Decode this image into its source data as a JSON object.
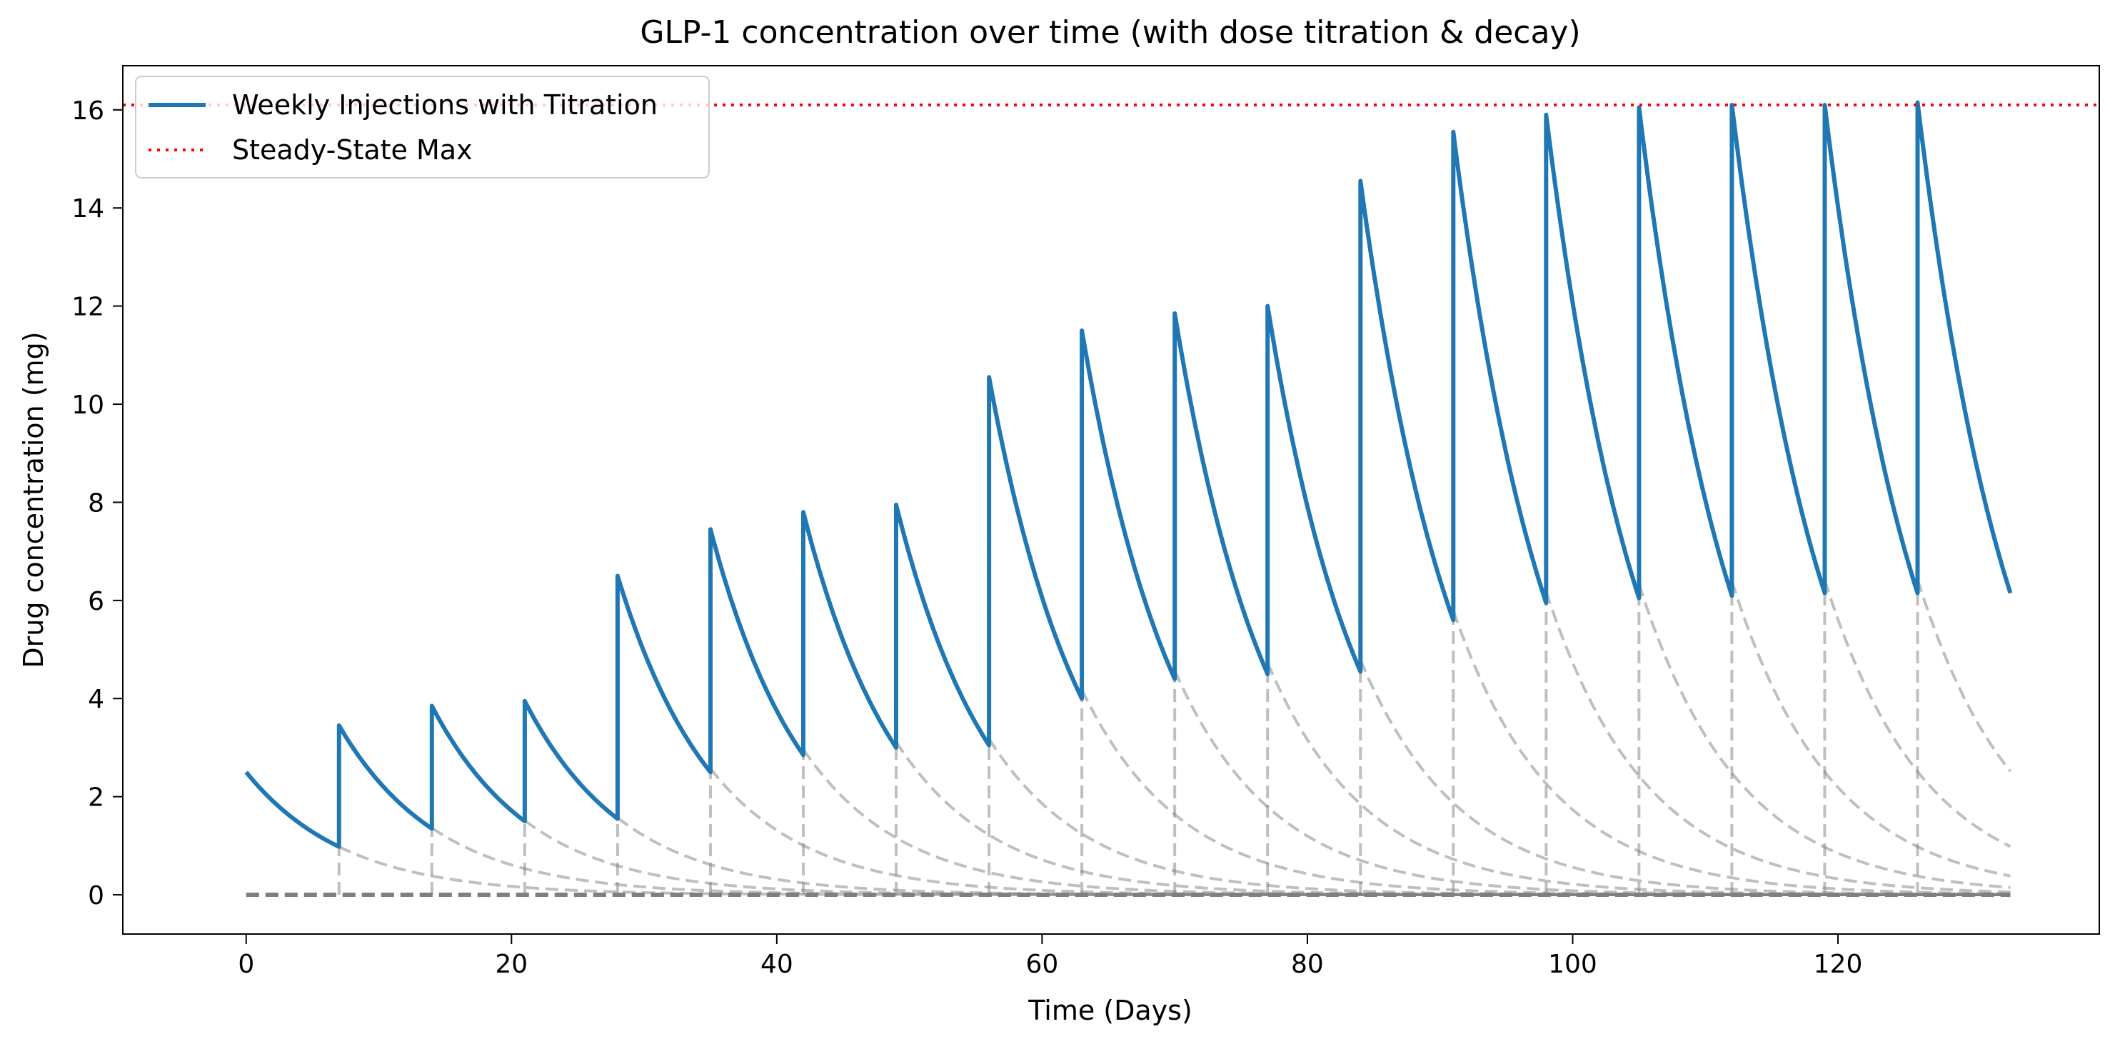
{
  "colors": {
    "series": "#1f77b4",
    "steady_state": "#ff0000",
    "component_curves": "#7f7f7f",
    "axes": "#000000",
    "background": "#ffffff"
  },
  "chart_data": {
    "type": "line",
    "title": "GLP-1 concentration over time (with dose titration & decay)",
    "xlabel": "Time (Days)",
    "ylabel": "Drug concentration (mg)",
    "xlim": [
      -9.3,
      139.7
    ],
    "ylim": [
      -0.8,
      16.9
    ],
    "xticks": [
      0,
      20,
      40,
      60,
      80,
      100,
      120
    ],
    "xtick_labels": [
      "0",
      "20",
      "40",
      "60",
      "80",
      "100",
      "120"
    ],
    "yticks": [
      0,
      2,
      4,
      6,
      8,
      10,
      12,
      14,
      16
    ],
    "ytick_labels": [
      "0",
      "2",
      "4",
      "6",
      "8",
      "10",
      "12",
      "14",
      "16"
    ],
    "grid": false,
    "legend": {
      "placement": "upper-left",
      "entries": [
        {
          "label": "Weekly Injections with Titration",
          "style": "solid"
        },
        {
          "label": "Steady-State Max",
          "style": "dotted"
        }
      ]
    },
    "decay_per_day": 0.8746,
    "t_end": 133,
    "injection_days": [
      0,
      7,
      14,
      21,
      28,
      35,
      42,
      49,
      56,
      63,
      70,
      77,
      84,
      91,
      98,
      105,
      112,
      119,
      126
    ],
    "doses": [
      2.5,
      2.5,
      2.5,
      2.5,
      5,
      5,
      5,
      5,
      7.5,
      7.5,
      7.5,
      7.5,
      10,
      10,
      10,
      10,
      10,
      10,
      10
    ],
    "steady_state_max": 16.1,
    "series": [
      {
        "name": "Weekly Injections with Titration",
        "x": [
          0,
          7,
          7,
          14,
          14,
          21,
          21,
          28,
          28,
          35,
          35,
          42,
          42,
          49,
          49,
          56,
          56,
          63,
          63,
          70,
          70,
          77,
          77,
          84,
          84,
          91,
          91,
          98,
          98,
          105,
          105,
          112,
          112,
          119,
          119,
          126,
          126,
          133
        ],
        "y": [
          2.5,
          0.98,
          3.45,
          1.35,
          3.85,
          1.5,
          3.95,
          1.55,
          6.5,
          2.5,
          7.45,
          2.85,
          7.8,
          3.0,
          7.95,
          3.05,
          10.55,
          4.0,
          11.5,
          4.4,
          11.85,
          4.5,
          12.0,
          4.55,
          14.55,
          5.6,
          15.55,
          5.95,
          15.9,
          6.05,
          16.05,
          6.1,
          16.1,
          6.15,
          16.1,
          6.15,
          16.15,
          6.15
        ]
      },
      {
        "name": "Steady-State Max",
        "y": 16.1
      }
    ]
  }
}
